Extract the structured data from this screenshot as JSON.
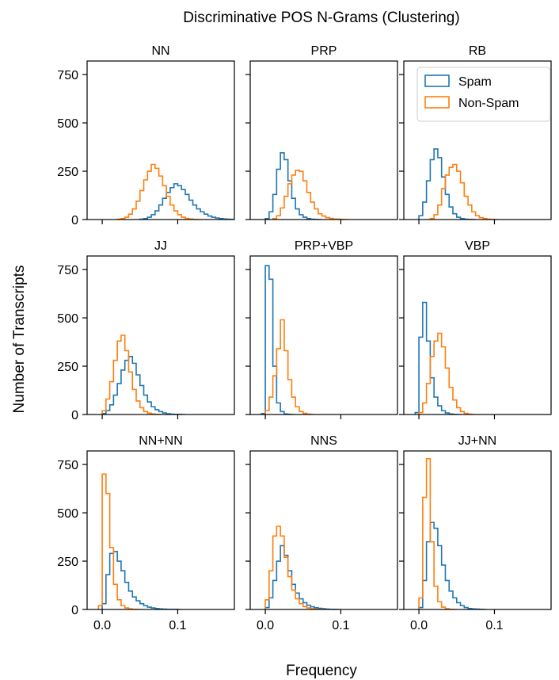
{
  "figure": {
    "title": "Discriminative POS N-Grams (Clustering)",
    "xlabel": "Frequency",
    "ylabel": "Number of Transcripts"
  },
  "legend": {
    "placement": "top-right",
    "entries": [
      {
        "name": "Spam",
        "color": "#1f77b4"
      },
      {
        "name": "Non-Spam",
        "color": "#ff7f0e"
      }
    ]
  },
  "chart_data": {
    "type": "histogram",
    "grid": false,
    "xlim": [
      -0.02,
      0.175
    ],
    "ylim": [
      0,
      820
    ],
    "x_ticks": [
      0.0,
      0.1
    ],
    "x_tick_labels": [
      "0.0",
      "0.1"
    ],
    "y_ticks": [
      0,
      250,
      500,
      750
    ],
    "y_tick_labels": [
      "0",
      "250",
      "500",
      "750"
    ],
    "bin_width": 0.005,
    "bins_start": -0.005,
    "panels": [
      {
        "title": "NN",
        "series": [
          {
            "name": "Spam",
            "bins_start": 0.05,
            "counts": [
              2,
              5,
              12,
              25,
              45,
              75,
              110,
              140,
              165,
              185,
              175,
              155,
              130,
              100,
              75,
              55,
              40,
              28,
              18,
              12,
              8,
              5,
              3,
              2,
              1,
              1,
              0
            ]
          },
          {
            "name": "Non-Spam",
            "bins_start": 0.02,
            "counts": [
              2,
              5,
              12,
              28,
              55,
              95,
              150,
              205,
              250,
              285,
              265,
              225,
              175,
              120,
              75,
              45,
              25,
              12,
              6,
              3,
              1,
              0
            ]
          }
        ]
      },
      {
        "title": "PRP",
        "series": [
          {
            "name": "Spam",
            "bins_start": 0.0,
            "counts": [
              5,
              40,
              130,
              260,
              345,
              310,
              200,
              110,
              55,
              25,
              12,
              5,
              2,
              1,
              0
            ]
          },
          {
            "name": "Non-Spam",
            "bins_start": 0.01,
            "counts": [
              5,
              20,
              60,
              120,
              185,
              230,
              255,
              250,
              200,
              140,
              90,
              55,
              30,
              18,
              10,
              6,
              3,
              2,
              1,
              0
            ]
          }
        ]
      },
      {
        "title": "RB",
        "series": [
          {
            "name": "Spam",
            "bins_start": 0.0,
            "counts": [
              20,
              90,
              200,
              310,
              365,
              320,
              220,
              130,
              65,
              30,
              12,
              5,
              2,
              1,
              0
            ]
          },
          {
            "name": "Non-Spam",
            "bins_start": 0.015,
            "counts": [
              5,
              25,
              75,
              160,
              230,
              270,
              285,
              250,
              190,
              120,
              75,
              40,
              20,
              10,
              5,
              2,
              1,
              0
            ]
          }
        ]
      },
      {
        "title": "JJ",
        "series": [
          {
            "name": "Spam",
            "bins_start": 0.0,
            "counts": [
              5,
              20,
              50,
              100,
              160,
              230,
              280,
              300,
              265,
              205,
              150,
              100,
              65,
              40,
              25,
              15,
              8,
              4,
              2,
              1,
              1,
              0
            ]
          },
          {
            "name": "Non-Spam",
            "bins_start": 0.0,
            "counts": [
              20,
              80,
              170,
              280,
              380,
              410,
              330,
              220,
              130,
              70,
              35,
              15,
              7,
              3,
              1,
              0
            ]
          }
        ]
      },
      {
        "title": "PRP+VBP",
        "series": [
          {
            "name": "Spam",
            "bins_start": -0.005,
            "counts": [
              5,
              770,
              700,
              250,
              60,
              15,
              3,
              1,
              0
            ]
          },
          {
            "name": "Non-Spam",
            "bins_start": 0.0,
            "counts": [
              20,
              90,
              200,
              340,
              490,
              330,
              180,
              90,
              40,
              15,
              6,
              2,
              0
            ]
          }
        ]
      },
      {
        "title": "VBP",
        "series": [
          {
            "name": "Spam",
            "bins_start": -0.005,
            "counts": [
              10,
              400,
              580,
              380,
              190,
              90,
              45,
              20,
              8,
              3,
              1,
              0
            ]
          },
          {
            "name": "Non-Spam",
            "bins_start": 0.0,
            "counts": [
              10,
              60,
              160,
              300,
              380,
              420,
              350,
              240,
              140,
              75,
              35,
              15,
              6,
              2,
              0
            ]
          }
        ]
      },
      {
        "title": "NN+NN",
        "series": [
          {
            "name": "Spam",
            "bins_start": 0.0,
            "counts": [
              30,
              180,
              290,
              300,
              250,
              200,
              140,
              95,
              65,
              45,
              30,
              20,
              12,
              8,
              5,
              3,
              2,
              1,
              1,
              1,
              0
            ]
          },
          {
            "name": "Non-Spam",
            "bins_start": -0.005,
            "counts": [
              20,
              700,
              600,
              320,
              130,
              50,
              20,
              8,
              3,
              1,
              0
            ]
          }
        ]
      },
      {
        "title": "NNS",
        "series": [
          {
            "name": "Spam",
            "bins_start": 0.0,
            "counts": [
              10,
              60,
              150,
              250,
              330,
              280,
              200,
              130,
              85,
              55,
              35,
              22,
              14,
              9,
              6,
              4,
              2,
              1,
              1,
              0
            ]
          },
          {
            "name": "Non-Spam",
            "bins_start": 0.0,
            "counts": [
              50,
              200,
              380,
              430,
              380,
              270,
              170,
              100,
              55,
              30,
              15,
              8,
              4,
              2,
              1,
              0
            ]
          }
        ]
      },
      {
        "title": "JJ+NN",
        "series": [
          {
            "name": "Spam",
            "bins_start": 0.0,
            "counts": [
              10,
              150,
              350,
              450,
              420,
              330,
              230,
              150,
              95,
              60,
              35,
              20,
              10,
              5,
              3,
              2,
              1,
              0
            ]
          },
          {
            "name": "Non-Spam",
            "bins_start": 0.0,
            "counts": [
              60,
              580,
              780,
              350,
              120,
              40,
              12,
              4,
              1,
              0
            ]
          }
        ]
      }
    ]
  }
}
